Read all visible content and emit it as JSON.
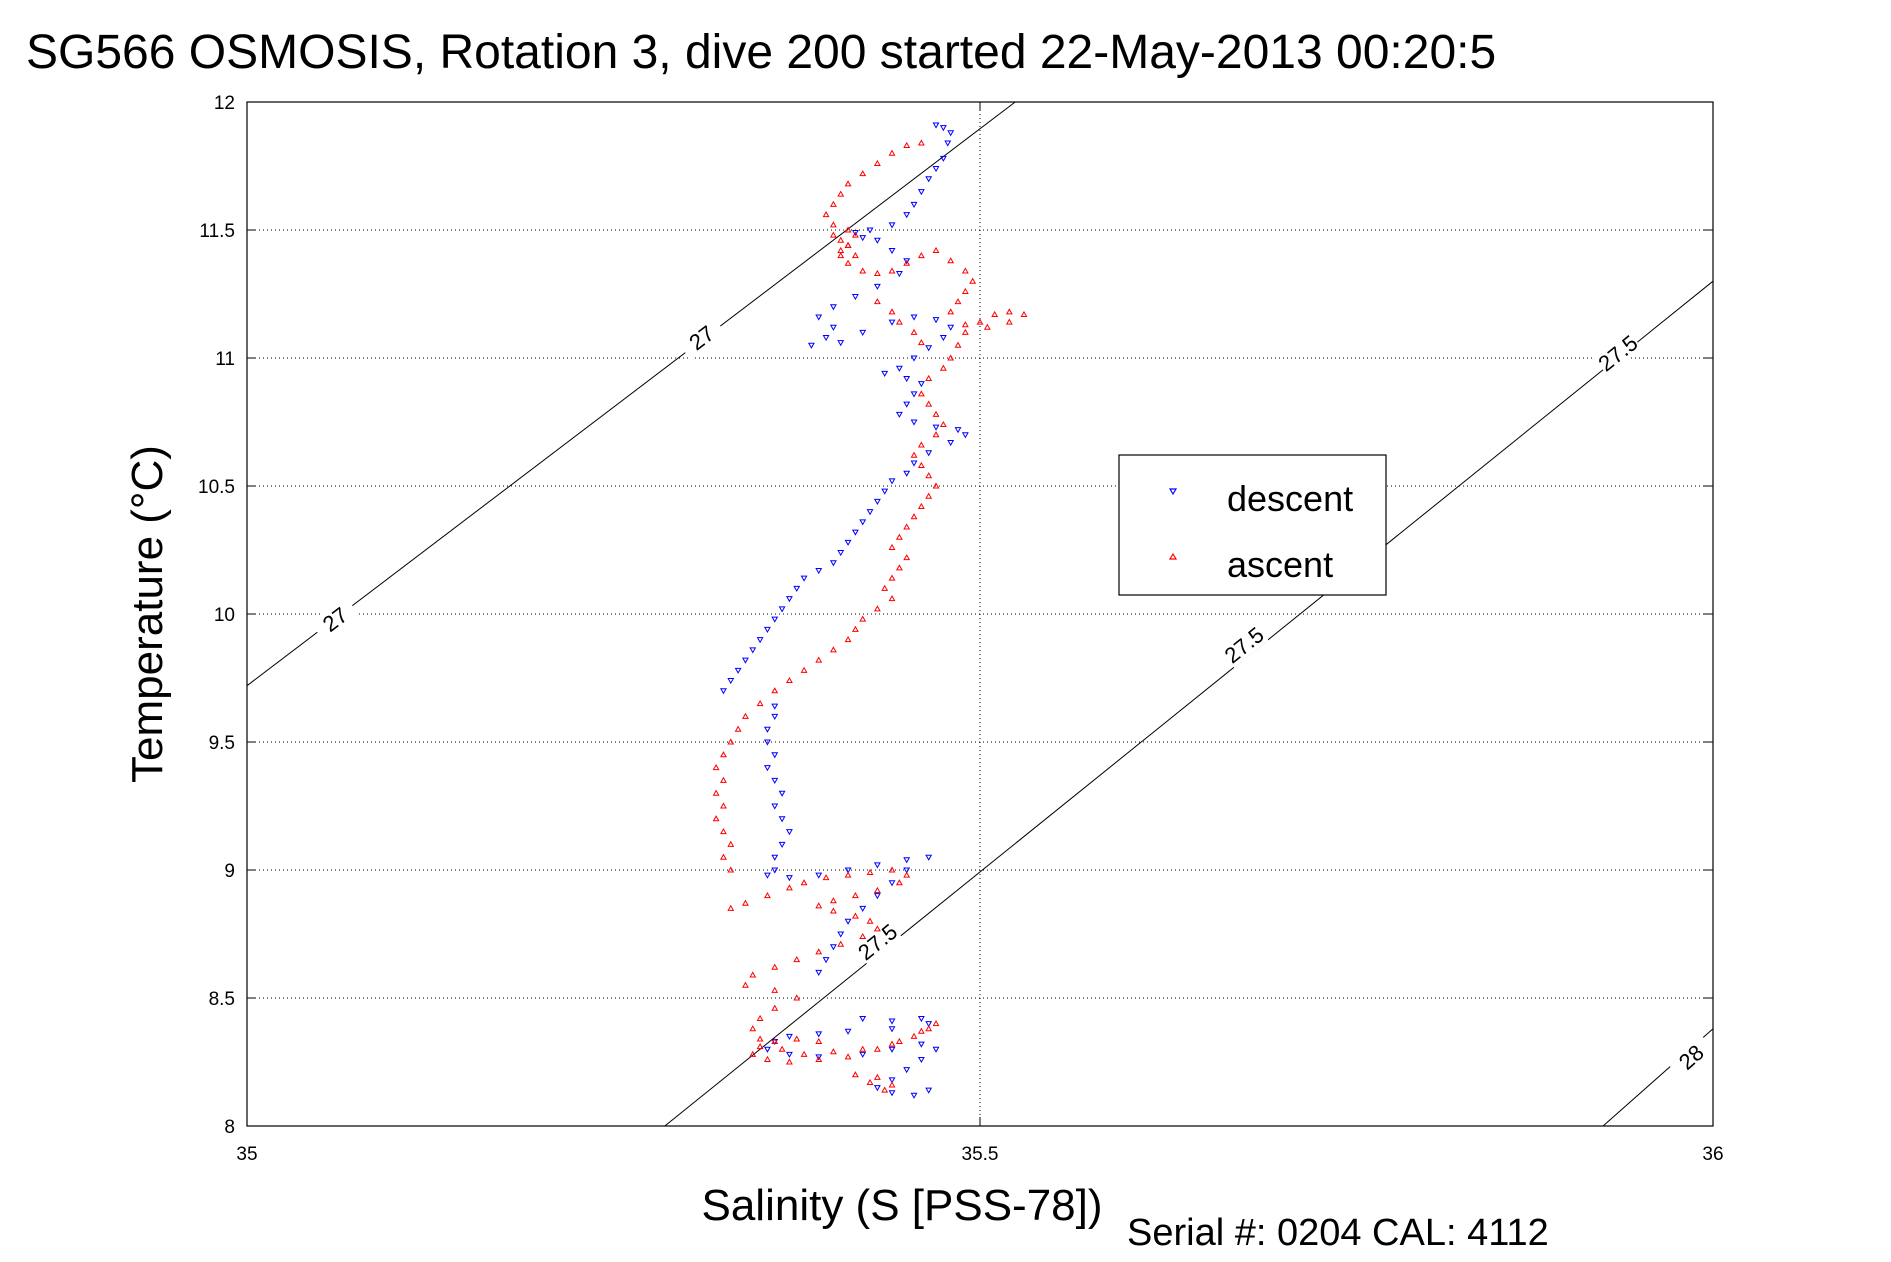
{
  "chart_data": {
    "type": "scatter",
    "title": "SG566 OSMOSIS, Rotation 3, dive 200 started 22-May-2013 00:20:5",
    "xlabel": "Salinity (S [PSS-78])",
    "ylabel": "Temperature (°C)",
    "xlim": [
      35,
      36
    ],
    "ylim": [
      8,
      12
    ],
    "x_ticks": [
      "35",
      "35.5",
      "36"
    ],
    "y_ticks": [
      "8",
      "8.5",
      "9",
      "9.5",
      "10",
      "10.5",
      "11",
      "11.5",
      "12"
    ],
    "grid": true,
    "legend_position": "right-center",
    "footer": "Serial #: 0204  CAL: 4112",
    "series": [
      {
        "name": "descent",
        "color": "#0000ff",
        "marker": "triangle-down",
        "points": [
          [
            35.47,
            11.91
          ],
          [
            35.475,
            11.9
          ],
          [
            35.48,
            11.88
          ],
          [
            35.478,
            11.84
          ],
          [
            35.475,
            11.78
          ],
          [
            35.47,
            11.74
          ],
          [
            35.465,
            11.7
          ],
          [
            35.46,
            11.65
          ],
          [
            35.455,
            11.6
          ],
          [
            35.45,
            11.56
          ],
          [
            35.44,
            11.52
          ],
          [
            35.425,
            11.5
          ],
          [
            35.415,
            11.49
          ],
          [
            35.42,
            11.47
          ],
          [
            35.43,
            11.46
          ],
          [
            35.44,
            11.42
          ],
          [
            35.45,
            11.38
          ],
          [
            35.445,
            11.33
          ],
          [
            35.43,
            11.28
          ],
          [
            35.415,
            11.24
          ],
          [
            35.4,
            11.2
          ],
          [
            35.39,
            11.16
          ],
          [
            35.4,
            11.12
          ],
          [
            35.395,
            11.08
          ],
          [
            35.385,
            11.05
          ],
          [
            35.405,
            11.06
          ],
          [
            35.42,
            11.1
          ],
          [
            35.44,
            11.14
          ],
          [
            35.455,
            11.16
          ],
          [
            35.47,
            11.15
          ],
          [
            35.48,
            11.12
          ],
          [
            35.475,
            11.08
          ],
          [
            35.465,
            11.04
          ],
          [
            35.455,
            11.0
          ],
          [
            35.445,
            10.96
          ],
          [
            35.435,
            10.94
          ],
          [
            35.45,
            10.92
          ],
          [
            35.46,
            10.9
          ],
          [
            35.455,
            10.86
          ],
          [
            35.45,
            10.82
          ],
          [
            35.445,
            10.78
          ],
          [
            35.455,
            10.75
          ],
          [
            35.47,
            10.73
          ],
          [
            35.485,
            10.72
          ],
          [
            35.49,
            10.7
          ],
          [
            35.48,
            10.67
          ],
          [
            35.465,
            10.63
          ],
          [
            35.455,
            10.59
          ],
          [
            35.45,
            10.55
          ],
          [
            35.44,
            10.52
          ],
          [
            35.435,
            10.48
          ],
          [
            35.43,
            10.44
          ],
          [
            35.425,
            10.4
          ],
          [
            35.42,
            10.36
          ],
          [
            35.415,
            10.32
          ],
          [
            35.41,
            10.28
          ],
          [
            35.405,
            10.24
          ],
          [
            35.4,
            10.2
          ],
          [
            35.39,
            10.17
          ],
          [
            35.38,
            10.14
          ],
          [
            35.375,
            10.1
          ],
          [
            35.37,
            10.06
          ],
          [
            35.365,
            10.02
          ],
          [
            35.36,
            9.98
          ],
          [
            35.355,
            9.94
          ],
          [
            35.35,
            9.9
          ],
          [
            35.345,
            9.86
          ],
          [
            35.34,
            9.82
          ],
          [
            35.335,
            9.78
          ],
          [
            35.33,
            9.74
          ],
          [
            35.325,
            9.7
          ],
          [
            35.36,
            9.64
          ],
          [
            35.36,
            9.6
          ],
          [
            35.355,
            9.55
          ],
          [
            35.355,
            9.5
          ],
          [
            35.36,
            9.45
          ],
          [
            35.355,
            9.4
          ],
          [
            35.36,
            9.35
          ],
          [
            35.365,
            9.3
          ],
          [
            35.36,
            9.25
          ],
          [
            35.365,
            9.2
          ],
          [
            35.37,
            9.15
          ],
          [
            35.365,
            9.1
          ],
          [
            35.36,
            9.05
          ],
          [
            35.36,
            9.0
          ],
          [
            35.355,
            8.98
          ],
          [
            35.37,
            8.97
          ],
          [
            35.39,
            8.98
          ],
          [
            35.41,
            9.0
          ],
          [
            35.43,
            9.02
          ],
          [
            35.45,
            9.04
          ],
          [
            35.465,
            9.05
          ],
          [
            35.45,
            9.0
          ],
          [
            35.44,
            8.95
          ],
          [
            35.43,
            8.9
          ],
          [
            35.42,
            8.85
          ],
          [
            35.41,
            8.8
          ],
          [
            35.405,
            8.75
          ],
          [
            35.4,
            8.7
          ],
          [
            35.395,
            8.65
          ],
          [
            35.39,
            8.6
          ],
          [
            35.42,
            8.42
          ],
          [
            35.44,
            8.41
          ],
          [
            35.46,
            8.42
          ],
          [
            35.465,
            8.4
          ],
          [
            35.44,
            8.38
          ],
          [
            35.41,
            8.37
          ],
          [
            35.39,
            8.36
          ],
          [
            35.37,
            8.35
          ],
          [
            35.36,
            8.33
          ],
          [
            35.355,
            8.3
          ],
          [
            35.37,
            8.28
          ],
          [
            35.39,
            8.27
          ],
          [
            35.42,
            8.28
          ],
          [
            35.44,
            8.3
          ],
          [
            35.46,
            8.32
          ],
          [
            35.47,
            8.3
          ],
          [
            35.46,
            8.26
          ],
          [
            35.45,
            8.22
          ],
          [
            35.44,
            8.18
          ],
          [
            35.43,
            8.15
          ],
          [
            35.44,
            8.13
          ],
          [
            35.455,
            8.12
          ],
          [
            35.465,
            8.14
          ]
        ]
      },
      {
        "name": "ascent",
        "color": "#ff0000",
        "marker": "triangle-up",
        "points": [
          [
            35.33,
            8.85
          ],
          [
            35.34,
            8.87
          ],
          [
            35.355,
            8.9
          ],
          [
            35.37,
            8.93
          ],
          [
            35.38,
            8.95
          ],
          [
            35.395,
            8.97
          ],
          [
            35.41,
            8.98
          ],
          [
            35.425,
            8.99
          ],
          [
            35.44,
            9.0
          ],
          [
            35.45,
            8.98
          ],
          [
            35.445,
            8.95
          ],
          [
            35.43,
            8.92
          ],
          [
            35.415,
            8.9
          ],
          [
            35.4,
            8.88
          ],
          [
            35.39,
            8.86
          ],
          [
            35.4,
            8.84
          ],
          [
            35.415,
            8.82
          ],
          [
            35.425,
            8.8
          ],
          [
            35.43,
            8.77
          ],
          [
            35.42,
            8.74
          ],
          [
            35.405,
            8.71
          ],
          [
            35.39,
            8.68
          ],
          [
            35.375,
            8.65
          ],
          [
            35.36,
            8.62
          ],
          [
            35.345,
            8.59
          ],
          [
            35.34,
            8.55
          ],
          [
            35.36,
            8.53
          ],
          [
            35.375,
            8.5
          ],
          [
            35.36,
            8.46
          ],
          [
            35.35,
            8.42
          ],
          [
            35.345,
            8.38
          ],
          [
            35.35,
            8.34
          ],
          [
            35.365,
            8.3
          ],
          [
            35.38,
            8.28
          ],
          [
            35.4,
            8.29
          ],
          [
            35.42,
            8.3
          ],
          [
            35.44,
            8.32
          ],
          [
            35.455,
            8.35
          ],
          [
            35.465,
            8.38
          ],
          [
            35.47,
            8.4
          ],
          [
            35.46,
            8.37
          ],
          [
            35.445,
            8.33
          ],
          [
            35.43,
            8.3
          ],
          [
            35.41,
            8.27
          ],
          [
            35.39,
            8.26
          ],
          [
            35.37,
            8.25
          ],
          [
            35.355,
            8.26
          ],
          [
            35.345,
            8.28
          ],
          [
            35.35,
            8.31
          ],
          [
            35.36,
            8.33
          ],
          [
            35.375,
            8.34
          ],
          [
            35.39,
            8.33
          ],
          [
            35.415,
            8.2
          ],
          [
            35.425,
            8.17
          ],
          [
            35.435,
            8.14
          ],
          [
            35.44,
            8.16
          ],
          [
            35.43,
            8.19
          ],
          [
            35.33,
            9.0
          ],
          [
            35.325,
            9.05
          ],
          [
            35.33,
            9.1
          ],
          [
            35.325,
            9.15
          ],
          [
            35.32,
            9.2
          ],
          [
            35.325,
            9.25
          ],
          [
            35.32,
            9.3
          ],
          [
            35.325,
            9.35
          ],
          [
            35.32,
            9.4
          ],
          [
            35.325,
            9.45
          ],
          [
            35.33,
            9.5
          ],
          [
            35.335,
            9.55
          ],
          [
            35.34,
            9.6
          ],
          [
            35.35,
            9.65
          ],
          [
            35.36,
            9.7
          ],
          [
            35.37,
            9.74
          ],
          [
            35.38,
            9.78
          ],
          [
            35.39,
            9.82
          ],
          [
            35.4,
            9.86
          ],
          [
            35.41,
            9.9
          ],
          [
            35.415,
            9.94
          ],
          [
            35.42,
            9.98
          ],
          [
            35.43,
            10.02
          ],
          [
            35.44,
            10.06
          ],
          [
            35.435,
            10.1
          ],
          [
            35.44,
            10.14
          ],
          [
            35.445,
            10.18
          ],
          [
            35.45,
            10.22
          ],
          [
            35.44,
            10.26
          ],
          [
            35.445,
            10.3
          ],
          [
            35.45,
            10.34
          ],
          [
            35.455,
            10.38
          ],
          [
            35.46,
            10.42
          ],
          [
            35.465,
            10.46
          ],
          [
            35.47,
            10.5
          ],
          [
            35.465,
            10.54
          ],
          [
            35.46,
            10.58
          ],
          [
            35.455,
            10.62
          ],
          [
            35.46,
            10.66
          ],
          [
            35.47,
            10.7
          ],
          [
            35.475,
            10.74
          ],
          [
            35.47,
            10.78
          ],
          [
            35.465,
            10.82
          ],
          [
            35.46,
            10.86
          ],
          [
            35.465,
            10.92
          ],
          [
            35.475,
            10.96
          ],
          [
            35.48,
            11.0
          ],
          [
            35.485,
            11.05
          ],
          [
            35.49,
            11.1
          ],
          [
            35.5,
            11.14
          ],
          [
            35.51,
            11.17
          ],
          [
            35.52,
            11.18
          ],
          [
            35.53,
            11.17
          ],
          [
            35.52,
            11.14
          ],
          [
            35.505,
            11.12
          ],
          [
            35.49,
            11.13
          ],
          [
            35.48,
            11.18
          ],
          [
            35.485,
            11.22
          ],
          [
            35.49,
            11.26
          ],
          [
            35.495,
            11.3
          ],
          [
            35.49,
            11.34
          ],
          [
            35.48,
            11.38
          ],
          [
            35.47,
            11.42
          ],
          [
            35.46,
            11.4
          ],
          [
            35.45,
            11.37
          ],
          [
            35.44,
            11.34
          ],
          [
            35.43,
            11.33
          ],
          [
            35.42,
            11.34
          ],
          [
            35.41,
            11.37
          ],
          [
            35.405,
            11.4
          ],
          [
            35.41,
            11.44
          ],
          [
            35.415,
            11.48
          ],
          [
            35.41,
            11.5
          ],
          [
            35.4,
            11.52
          ],
          [
            35.395,
            11.56
          ],
          [
            35.4,
            11.6
          ],
          [
            35.405,
            11.64
          ],
          [
            35.41,
            11.68
          ],
          [
            35.42,
            11.72
          ],
          [
            35.43,
            11.76
          ],
          [
            35.44,
            11.8
          ],
          [
            35.45,
            11.83
          ],
          [
            35.46,
            11.84
          ],
          [
            35.4,
            11.48
          ],
          [
            35.405,
            11.46
          ],
          [
            35.41,
            11.44
          ],
          [
            35.405,
            11.42
          ],
          [
            35.415,
            11.4
          ],
          [
            35.43,
            11.22
          ],
          [
            35.44,
            11.18
          ],
          [
            35.445,
            11.14
          ],
          [
            35.455,
            11.1
          ],
          [
            35.46,
            11.06
          ]
        ]
      }
    ],
    "isopycnals": [
      {
        "label": "27",
        "points": [
          [
            35.0,
            9.72
          ],
          [
            35.524,
            12.0
          ]
        ],
        "label_positions": [
          [
            35.06,
            9.98
          ],
          [
            35.31,
            11.08
          ]
        ]
      },
      {
        "label": "27.5",
        "points": [
          [
            35.285,
            8.0
          ],
          [
            36.0,
            11.3
          ]
        ],
        "label_positions": [
          [
            35.43,
            8.72
          ],
          [
            35.68,
            9.88
          ],
          [
            35.935,
            11.02
          ]
        ]
      },
      {
        "label": "28",
        "points": [
          [
            35.925,
            8.0
          ],
          [
            36.0,
            8.38
          ]
        ],
        "label_positions": [
          [
            35.985,
            8.27
          ]
        ]
      }
    ]
  }
}
